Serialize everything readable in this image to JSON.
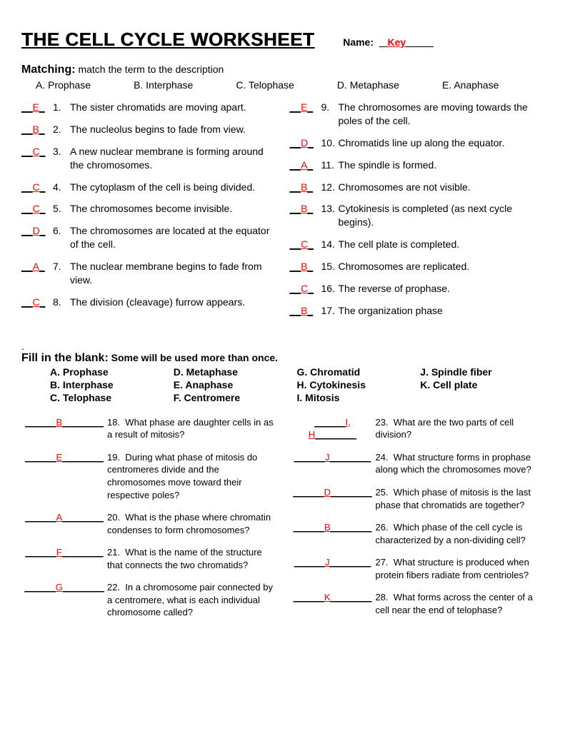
{
  "title": "THE CELL CYCLE WORKSHEET",
  "name_label": "Name:",
  "name_value": "Key",
  "matching": {
    "heading": "Matching:",
    "sub": "match the term to the description",
    "options": [
      "A. Prophase",
      "B. Interphase",
      "C. Telophase",
      "D. Metaphase",
      "E. Anaphase"
    ],
    "left": [
      {
        "ans": "E",
        "num": "1.",
        "text": "The sister chromatids are moving apart."
      },
      {
        "ans": "B",
        "num": "2.",
        "text": "The nucleolus begins to fade from view."
      },
      {
        "ans": "C",
        "num": "3.",
        "text": "A new nuclear membrane is forming around the chromosomes."
      },
      {
        "ans": "C",
        "num": "4.",
        "text": "The cytoplasm of the cell is being divided."
      },
      {
        "ans": "C",
        "num": "5.",
        "text": "The chromosomes become invisible."
      },
      {
        "ans": "D",
        "num": "6.",
        "text": "The chromosomes are located at the equator of the cell."
      },
      {
        "ans": "A",
        "num": "7.",
        "text": "The nuclear membrane begins to fade from view."
      },
      {
        "ans": "C",
        "num": "8.",
        "text": "The division (cleavage) furrow appears."
      }
    ],
    "right": [
      {
        "ans": "E",
        "num": "9.",
        "text": "The chromosomes are moving towards the poles of the cell."
      },
      {
        "ans": "D",
        "num": "10.",
        "text": "Chromatids line up along the equator."
      },
      {
        "ans": "A",
        "num": "11.",
        "text": "The spindle is formed."
      },
      {
        "ans": "B",
        "num": "12.",
        "text": "Chromosomes are not visible."
      },
      {
        "ans": "B",
        "num": "13.",
        "text": "Cytokinesis is completed (as next cycle begins)."
      },
      {
        "ans": "C",
        "num": "14.",
        "text": "The cell plate is completed."
      },
      {
        "ans": "B",
        "num": "15.",
        "text": "Chromosomes are replicated."
      },
      {
        "ans": "C",
        "num": "16.",
        "text": "The reverse of prophase."
      },
      {
        "ans": "B",
        "num": "17.",
        "text": "The organization phase"
      }
    ]
  },
  "fill": {
    "heading": "Fill in the blank:",
    "sub": "Some will be used more than once.",
    "options": [
      [
        "A. Prophase",
        "B. Interphase",
        "C. Telophase"
      ],
      [
        "D. Metaphase",
        "E. Anaphase",
        "F. Centromere"
      ],
      [
        "G.  Chromatid",
        "H. Cytokinesis",
        "I. Mitosis"
      ],
      [
        "J. Spindle fiber",
        "K. Cell plate",
        ""
      ]
    ],
    "left": [
      {
        "ans": "B",
        "num": "18.",
        "text": "What phase are daughter cells in as a result of mitosis?"
      },
      {
        "ans": "E",
        "num": "19.",
        "text": "During what phase of mitosis do centromeres divide and the chromosomes move toward their respective poles?"
      },
      {
        "ans": "A",
        "num": "20.",
        "text": "What is the phase where chromatin condenses to form chromosomes?"
      },
      {
        "ans": "F",
        "num": "21.",
        "text": "What is the name of the structure that connects the two chromatids?"
      },
      {
        "ans": "G",
        "num": "22.",
        "text": "In a chromosome pair connected by a centromere, what is each individual  chromosome called?"
      }
    ],
    "right": [
      {
        "ans": "I, H",
        "num": "23.",
        "text": "What are the two parts of cell division?"
      },
      {
        "ans": "J",
        "num": "24.",
        "text": "What structure forms in prophase along which the chromosomes move?"
      },
      {
        "ans": "D",
        "num": "25.",
        "text": "Which phase of mitosis is the last phase that chromatids are together?"
      },
      {
        "ans": "B",
        "num": "26.",
        "text": "Which phase of the cell cycle is characterized by a non-dividing cell?"
      },
      {
        "ans": "J",
        "num": "27.",
        "text": "What structure is produced when protein fibers radiate from centrioles?"
      },
      {
        "ans": "K",
        "num": "28.",
        "text": "What forms across the center of a cell near the end of telophase?"
      }
    ]
  }
}
